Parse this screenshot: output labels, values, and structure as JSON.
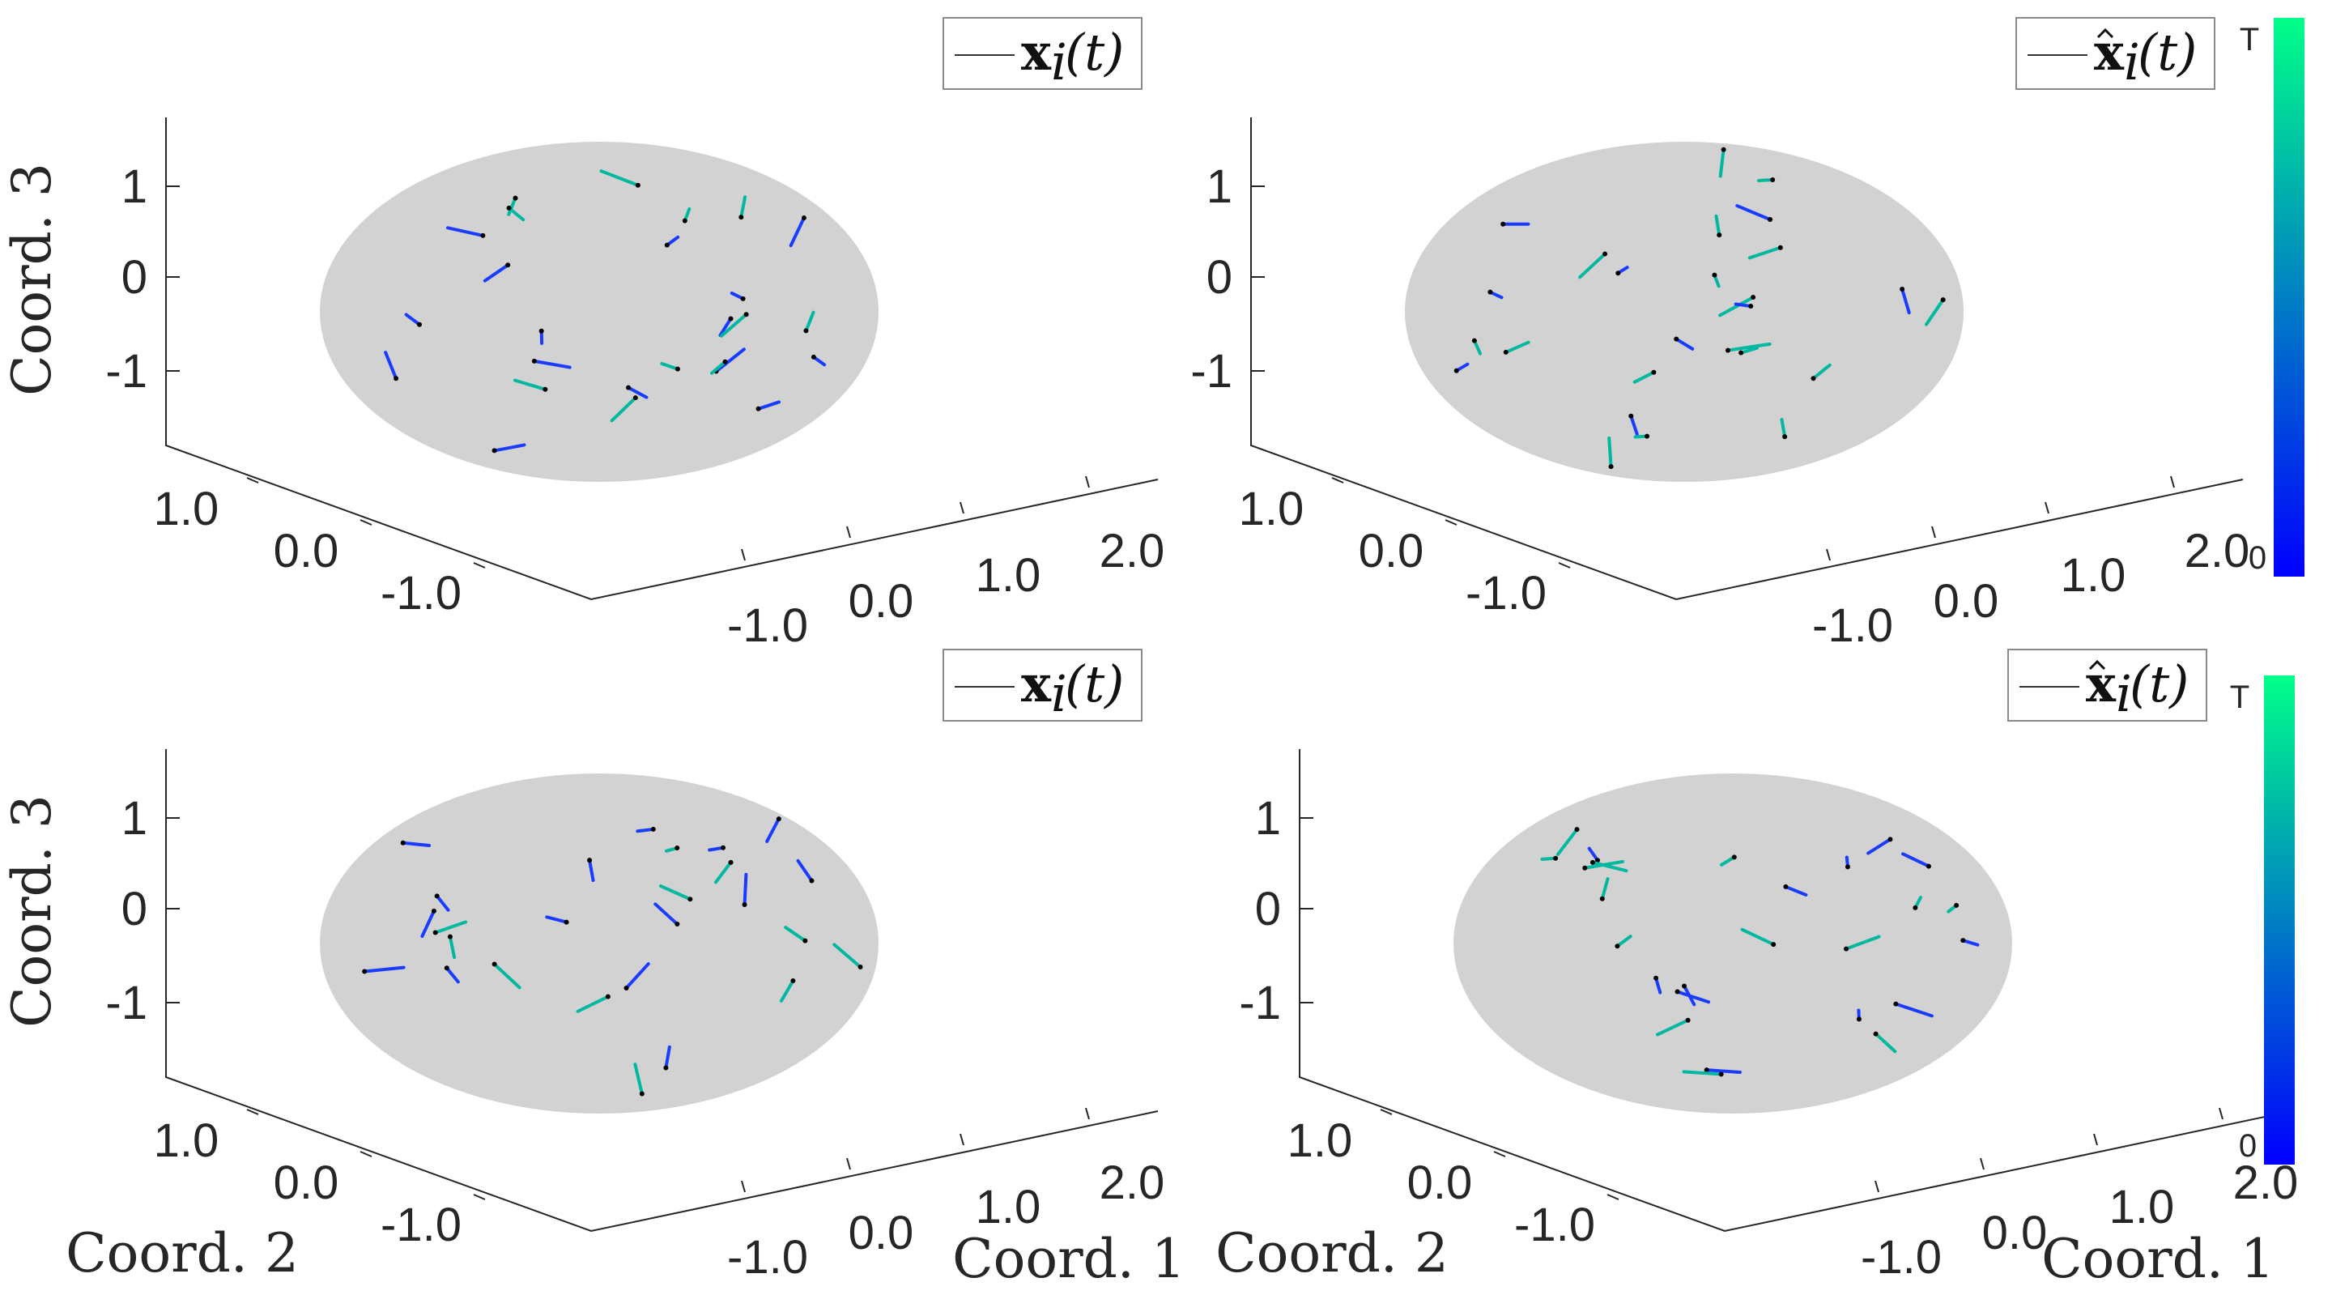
{
  "chart_data": [
    {
      "type": "scatter",
      "panel": "top-left",
      "zlabel": "Coord. 3",
      "zticks": [
        "1",
        "0",
        "-1"
      ],
      "yticks": [
        "1.0",
        "0.0",
        "-1.0"
      ],
      "xticks": [
        "-1.0",
        "0.0",
        "1.0",
        "2.0"
      ],
      "legend": {
        "symbol": "x",
        "hat": false,
        "sub": "i",
        "arg": "(t)"
      },
      "surface_color": "#d2d2d2"
    },
    {
      "type": "scatter",
      "panel": "top-right",
      "zlabel": "",
      "zticks": [
        "1",
        "0",
        "-1"
      ],
      "yticks": [
        "1.0",
        "0.0",
        "-1.0"
      ],
      "xticks": [
        "-1.0",
        "0.0",
        "1.0",
        "2.0"
      ],
      "legend": {
        "symbol": "x",
        "hat": true,
        "sub": "i",
        "arg": "(t)"
      },
      "colorbar": {
        "top_label": "T",
        "bottom_label": "0",
        "colors": [
          "#0000ff",
          "#00ff88"
        ]
      },
      "surface_color": "#d2d2d2"
    },
    {
      "type": "scatter",
      "panel": "bottom-left",
      "zlabel": "Coord. 3",
      "zticks": [
        "1",
        "0",
        "-1"
      ],
      "yticks": [
        "1.0",
        "0.0",
        "-1.0"
      ],
      "xticks": [
        "-1.0",
        "0.0",
        "1.0",
        "2.0"
      ],
      "ylabel": "Coord. 2",
      "xlabel": "Coord. 1",
      "legend": {
        "symbol": "x",
        "hat": false,
        "sub": "i",
        "arg": "(t)"
      },
      "surface_color": "#d2d2d2"
    },
    {
      "type": "scatter",
      "panel": "bottom-right",
      "zlabel": "",
      "zticks": [
        "1",
        "0",
        "-1"
      ],
      "yticks": [
        "1.0",
        "0.0",
        "-1.0"
      ],
      "xticks": [
        "-1.0",
        "0.0",
        "1.0",
        "2.0"
      ],
      "ylabel": "Coord. 2",
      "xlabel": "Coord. 1",
      "legend": {
        "symbol": "x",
        "hat": true,
        "sub": "i",
        "arg": "(t)"
      },
      "colorbar": {
        "top_label": "T",
        "bottom_label": "0",
        "colors": [
          "#0000ff",
          "#00ff88"
        ]
      },
      "surface_color": "#d2d2d2"
    }
  ]
}
